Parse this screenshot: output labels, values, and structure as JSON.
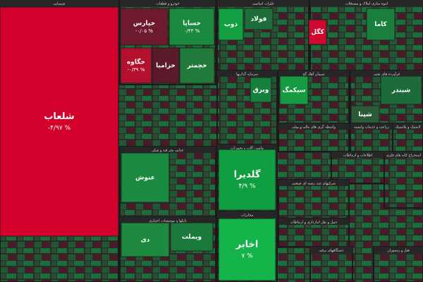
{
  "chart_data": {
    "type": "treemap",
    "sectors": [
      {
        "name": "شیمیایی",
        "tiles": [
          {
            "name": "شلعاب",
            "value": -4.97,
            "value_label": "-۴/۹۷ %",
            "color": "#d3002c"
          }
        ]
      },
      {
        "name": "خودرو و قطعات",
        "tiles": [
          {
            "name": "خپارس",
            "value": -0.05,
            "value_label": "-۰/۰۵ %",
            "color": "#6e1a2e"
          },
          {
            "name": "خساپا",
            "value": 0.43,
            "value_label": "۰/۴۳ %",
            "color": "#1b8a3f"
          },
          {
            "name": "خگاوه",
            "value": -0.39,
            "value_label": "-۰/۳۹ %",
            "color": "#b2102d"
          },
          {
            "name": "خزامیا",
            "color": "#5a1a2a"
          },
          {
            "name": "خچمتر",
            "color": "#1f7a3c"
          }
        ]
      },
      {
        "name": "فلزات اساسی",
        "tiles": [
          {
            "name": "ذوب",
            "color": "#13a044"
          },
          {
            "name": "فولاد",
            "color": "#1f6e3a"
          }
        ]
      },
      {
        "name": "انبوه سازی املاک و مستغلات",
        "tiles": [
          {
            "name": "کاما",
            "color": "#1a7f3c"
          },
          {
            "name": "کگل",
            "color": "#d00a2e"
          }
        ]
      },
      {
        "name": "سرمایه گذاریها",
        "tiles": [
          {
            "name": "وبرق",
            "color": "#14803b"
          }
        ]
      },
      {
        "name": "سیمان آهک گچ",
        "tiles": [
          {
            "name": "سیکمگ",
            "color": "#169a42"
          }
        ]
      },
      {
        "name": "فرآورده های نفتی",
        "tiles": [
          {
            "name": "شبندر",
            "color": "#1d6a3a"
          },
          {
            "name": "شپنا",
            "color": "#2a5a37"
          }
        ]
      },
      {
        "name": "غذایی بجز قند و شکر",
        "tiles": [
          {
            "name": "عنوش",
            "color": "#1b8a41"
          }
        ]
      },
      {
        "name": "بانکها و موسسات اعتباری",
        "tiles": [
          {
            "name": "دی",
            "color": "#1e8a40"
          },
          {
            "name": "وبملت",
            "color": "#1a7a3b"
          }
        ]
      },
      {
        "name": "ماشین آلات و تجهیزات",
        "tiles": [
          {
            "name": "گلدیرا",
            "value": 4.9,
            "value_label": "۴/۹ %",
            "color": "#109f40"
          }
        ]
      },
      {
        "name": "مخابرات",
        "tiles": [
          {
            "name": "اخابر",
            "value": 7,
            "value_label": "۷ %",
            "color": "#14b44b"
          }
        ]
      },
      {
        "name": "واسطه گری های مالی و پولی",
        "tiles": []
      },
      {
        "name": "زراعت و خدمات وابسته",
        "tiles": []
      },
      {
        "name": "لاستیک و پلاستیک",
        "tiles": []
      },
      {
        "name": "اطلاعات و ارتباطات",
        "tiles": []
      },
      {
        "name": "استخراج کانه های فلزی",
        "tiles": []
      },
      {
        "name": "شرکتهای چند رشته ای صنعتی",
        "tiles": []
      },
      {
        "name": "حمل و نقل انبارداری و ارتباطات",
        "tiles": []
      },
      {
        "name": "دستگاههای برقی",
        "tiles": []
      },
      {
        "name": "هتل و رستوران",
        "tiles": []
      }
    ]
  }
}
